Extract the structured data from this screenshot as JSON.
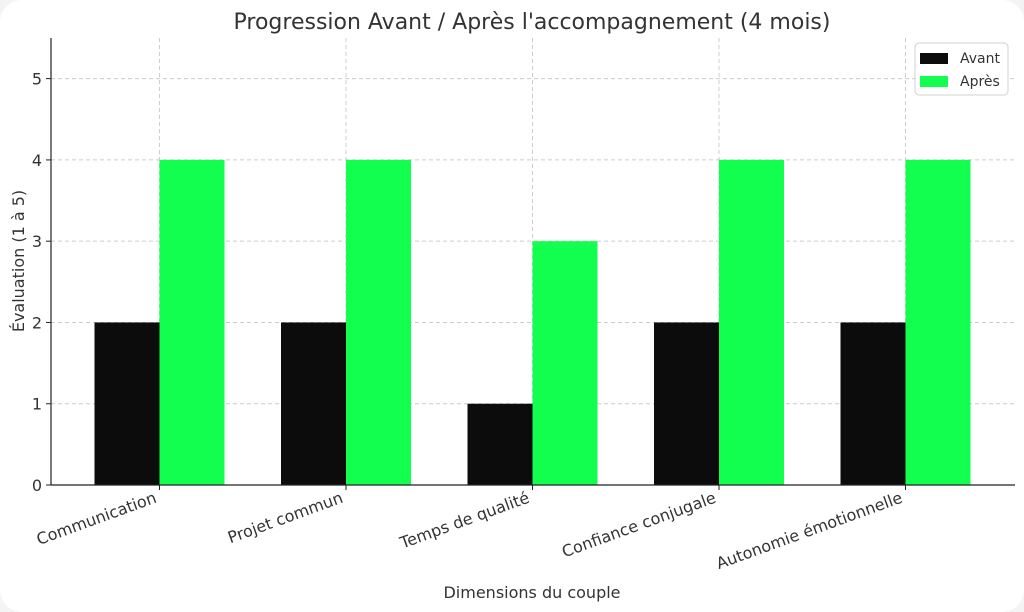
{
  "chart_data": {
    "type": "bar",
    "title": "Progression Avant / Après l'accompagnement (4 mois)",
    "xlabel": "Dimensions du couple",
    "ylabel": "Évaluation (1 à 5)",
    "categories": [
      "Communication",
      "Projet commun",
      "Temps de qualité",
      "Confiance conjugale",
      "Autonomie émotionnelle"
    ],
    "series": [
      {
        "name": "Avant",
        "values": [
          2,
          2,
          1,
          2,
          2
        ],
        "color": "#0c0c0c"
      },
      {
        "name": "Après",
        "values": [
          4,
          4,
          3,
          4,
          4
        ],
        "color": "#12ff4f"
      }
    ],
    "ylim": [
      0,
      5.5
    ],
    "yticks": [
      0,
      1,
      2,
      3,
      4,
      5
    ],
    "grid": true,
    "legend_position": "top-right"
  }
}
